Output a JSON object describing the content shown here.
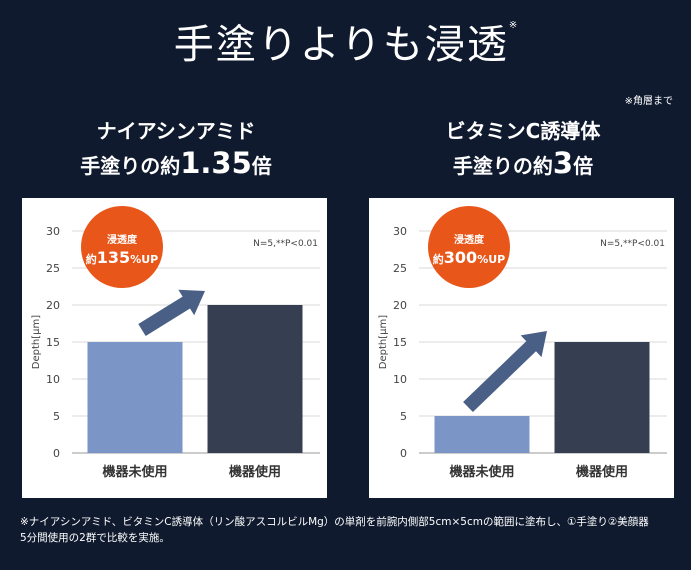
{
  "page": {
    "title": "手塗りよりも浸透",
    "title_mark": "※",
    "note_top": "※角層まで",
    "footnote_line1": "※ナイアシンアミド、ビタミンC誘導体（リン酸アスコルビルMg）の単剤を前腕内側部5cm×5cmの範囲に塗布し、①手塗り②美顔器",
    "footnote_line2": "5分間使用の2群で比較を実施。"
  },
  "panels": [
    {
      "heading1": "ナイアシンアミド",
      "heading2_pre": "手塗りの約",
      "heading2_num": "1.35",
      "heading2_post": "倍",
      "badge_line1": "浸透度",
      "badge_pre": "約",
      "badge_num": "135",
      "badge_post": "%UP",
      "stat_note": "N=5,**P<0.01"
    },
    {
      "heading1": "ビタミンC誘導体",
      "heading2_pre": "手塗りの約",
      "heading2_num": "3",
      "heading2_post": "倍",
      "badge_line1": "浸透度",
      "badge_pre": "約",
      "badge_num": "300",
      "badge_post": "%UP",
      "stat_note": "N=5,**P<0.01"
    }
  ],
  "chart_data": [
    {
      "type": "bar",
      "categories": [
        "機器未使用",
        "機器使用"
      ],
      "values": [
        15,
        20
      ],
      "ylabel": "Depth[μm]",
      "ylim": [
        0,
        30
      ],
      "yticks": [
        0,
        5,
        10,
        15,
        20,
        25,
        30
      ],
      "grid": true,
      "colors": [
        "#7b96c6",
        "#363f52"
      ]
    },
    {
      "type": "bar",
      "categories": [
        "機器未使用",
        "機器使用"
      ],
      "values": [
        5,
        15
      ],
      "ylabel": "Depth[μm]",
      "ylim": [
        0,
        30
      ],
      "yticks": [
        0,
        5,
        10,
        15,
        20,
        25,
        30
      ],
      "grid": true,
      "colors": [
        "#7b96c6",
        "#363f52"
      ]
    }
  ],
  "colors": {
    "background": "#0f1a2e",
    "badge": "#e8561a",
    "arrow": "#4a5f86",
    "bar_light": "#7b96c6",
    "bar_dark": "#363f52"
  }
}
